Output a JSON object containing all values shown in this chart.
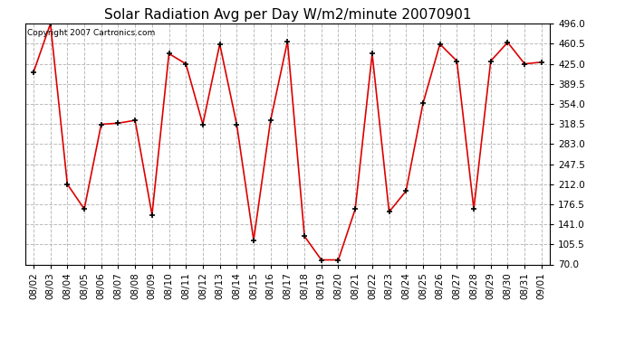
{
  "title": "Solar Radiation Avg per Day W/m2/minute 20070901",
  "copyright_text": "Copyright 2007 Cartronics.com",
  "dates": [
    "08/02",
    "08/03",
    "08/04",
    "08/05",
    "08/06",
    "08/07",
    "08/08",
    "08/09",
    "08/10",
    "08/11",
    "08/12",
    "08/13",
    "08/14",
    "08/15",
    "08/16",
    "08/17",
    "08/18",
    "08/19",
    "08/20",
    "08/21",
    "08/22",
    "08/23",
    "08/24",
    "08/25",
    "08/26",
    "08/27",
    "08/28",
    "08/29",
    "08/30",
    "08/31",
    "09/01"
  ],
  "values": [
    410,
    496,
    212,
    168,
    318,
    320,
    325,
    158,
    443,
    425,
    318,
    460,
    318,
    113,
    325,
    465,
    120,
    78,
    78,
    168,
    443,
    163,
    200,
    355,
    460,
    430,
    168,
    430,
    463,
    425,
    428
  ],
  "line_color": "#dd0000",
  "marker": "+",
  "marker_size": 5,
  "marker_color": "#000000",
  "bg_color": "#ffffff",
  "plot_bg_color": "#ffffff",
  "grid_color": "#bbbbbb",
  "grid_style": "--",
  "ylim": [
    70.0,
    496.0
  ],
  "yticks": [
    70.0,
    105.5,
    141.0,
    176.5,
    212.0,
    247.5,
    283.0,
    318.5,
    354.0,
    389.5,
    425.0,
    460.5,
    496.0
  ],
  "title_fontsize": 11,
  "tick_fontsize": 7.5,
  "copyright_fontsize": 6.5,
  "figsize": [
    6.9,
    3.75
  ],
  "dpi": 100
}
